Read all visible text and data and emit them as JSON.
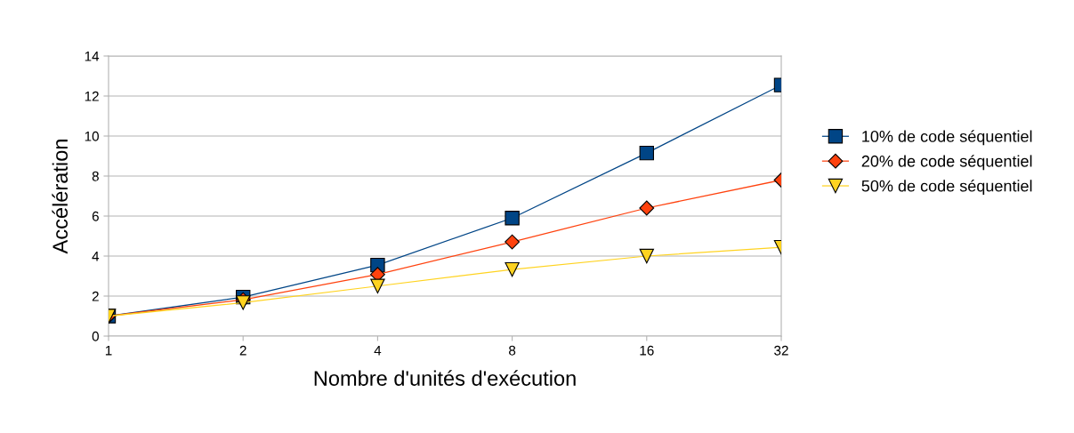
{
  "chart_data": {
    "type": "line",
    "xlabel": "Nombre d'unités d'exécution",
    "ylabel": "Accélération",
    "categories": [
      "1",
      "2",
      "4",
      "8",
      "16",
      "32"
    ],
    "series": [
      {
        "name": "10% de code séquentiel",
        "color": "#004586",
        "marker": "square",
        "values": [
          1,
          1.95,
          3.55,
          5.9,
          9.15,
          12.55
        ]
      },
      {
        "name": "20% de code séquentiel",
        "color": "#ff420e",
        "marker": "diamond",
        "values": [
          1,
          1.82,
          3.08,
          4.71,
          6.4,
          7.8
        ]
      },
      {
        "name": "50% de code séquentiel",
        "color": "#ffd320",
        "marker": "triangle",
        "values": [
          1,
          1.67,
          2.5,
          3.33,
          4.0,
          4.44
        ]
      }
    ],
    "ylim": [
      0,
      14
    ],
    "yticks": [
      0,
      2,
      4,
      6,
      8,
      10,
      12,
      14
    ],
    "grid": "y",
    "legend": "right",
    "line_style": "solid"
  }
}
